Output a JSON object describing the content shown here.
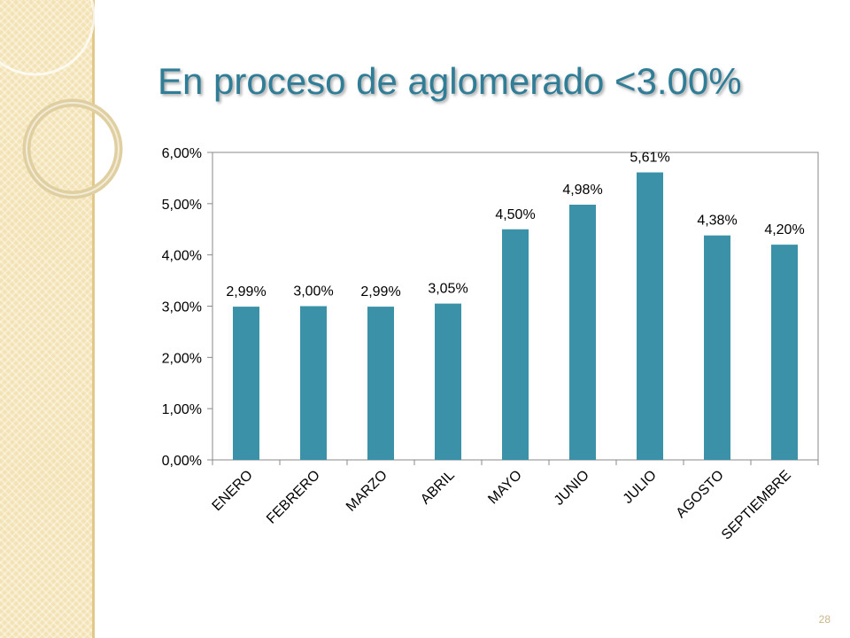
{
  "slide": {
    "title": "En proceso de aglomerado <3.00%",
    "page_number": "28",
    "colors": {
      "title": "#2f7d96",
      "bar": "#3a91a8",
      "strip": "#f3e2b3"
    }
  },
  "chart_data": {
    "type": "bar",
    "title": "",
    "xlabel": "",
    "ylabel": "",
    "categories": [
      "ENERO",
      "FEBRERO",
      "MARZO",
      "ABRIL",
      "MAYO",
      "JUNIO",
      "JULIO",
      "AGOSTO",
      "SEPTIEMBRE"
    ],
    "values": [
      2.99,
      3.0,
      2.99,
      3.05,
      4.5,
      4.98,
      5.61,
      4.38,
      4.2
    ],
    "data_labels": [
      "2,99%",
      "3,00%",
      "2,99%",
      "3,05%",
      "4,50%",
      "4,98%",
      "5,61%",
      "4,38%",
      "4,20%"
    ],
    "y_ticks": [
      0,
      1,
      2,
      3,
      4,
      5,
      6
    ],
    "y_tick_labels": [
      "0,00%",
      "1,00%",
      "2,00%",
      "3,00%",
      "4,00%",
      "5,00%",
      "6,00%"
    ],
    "ylim": [
      0,
      6
    ],
    "grid": false,
    "legend": "none",
    "bar_color": "#3a91a8"
  }
}
